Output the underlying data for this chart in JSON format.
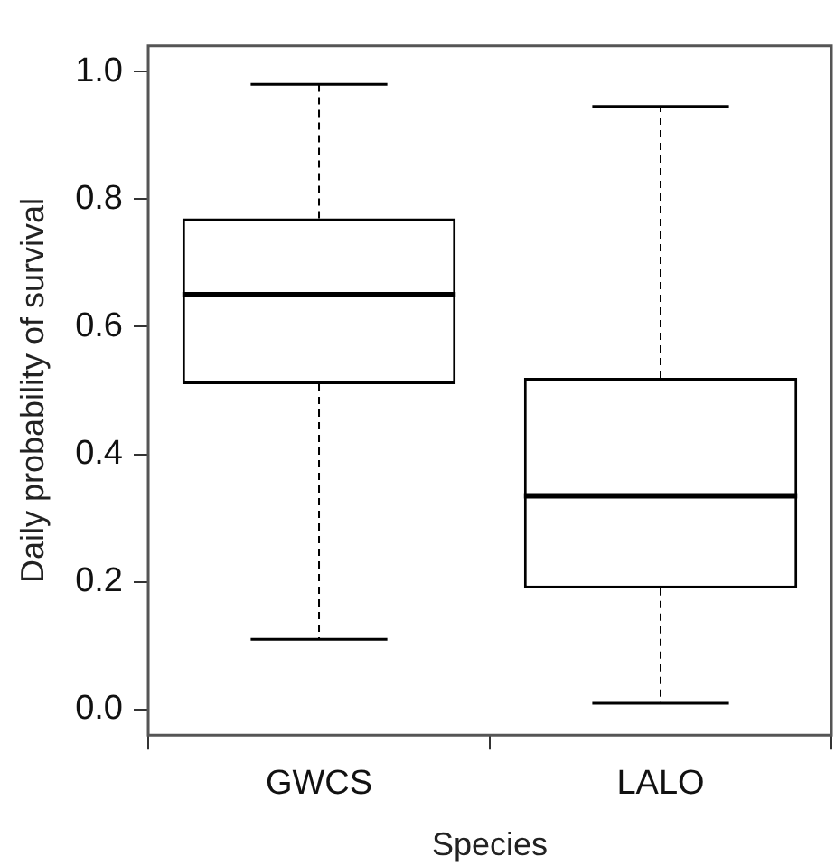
{
  "chart_data": {
    "type": "box",
    "categories": [
      "GWCS",
      "LALO"
    ],
    "xlabel": "Species",
    "ylabel": "Daily probability of survival",
    "color": "#000000",
    "boxes": [
      {
        "low": 0.11,
        "q1": 0.51,
        "median": 0.65,
        "q3": 0.77,
        "high": 0.98
      },
      {
        "low": 0.01,
        "q1": 0.19,
        "median": 0.335,
        "q3": 0.52,
        "high": 0.945
      }
    ],
    "ylim": [
      -0.04,
      1.04
    ],
    "yticks": [
      {
        "value": 0,
        "label": "0.0"
      },
      0.2,
      0.4,
      0.6,
      0.8,
      {
        "value": 1,
        "label": "1.0"
      }
    ]
  }
}
